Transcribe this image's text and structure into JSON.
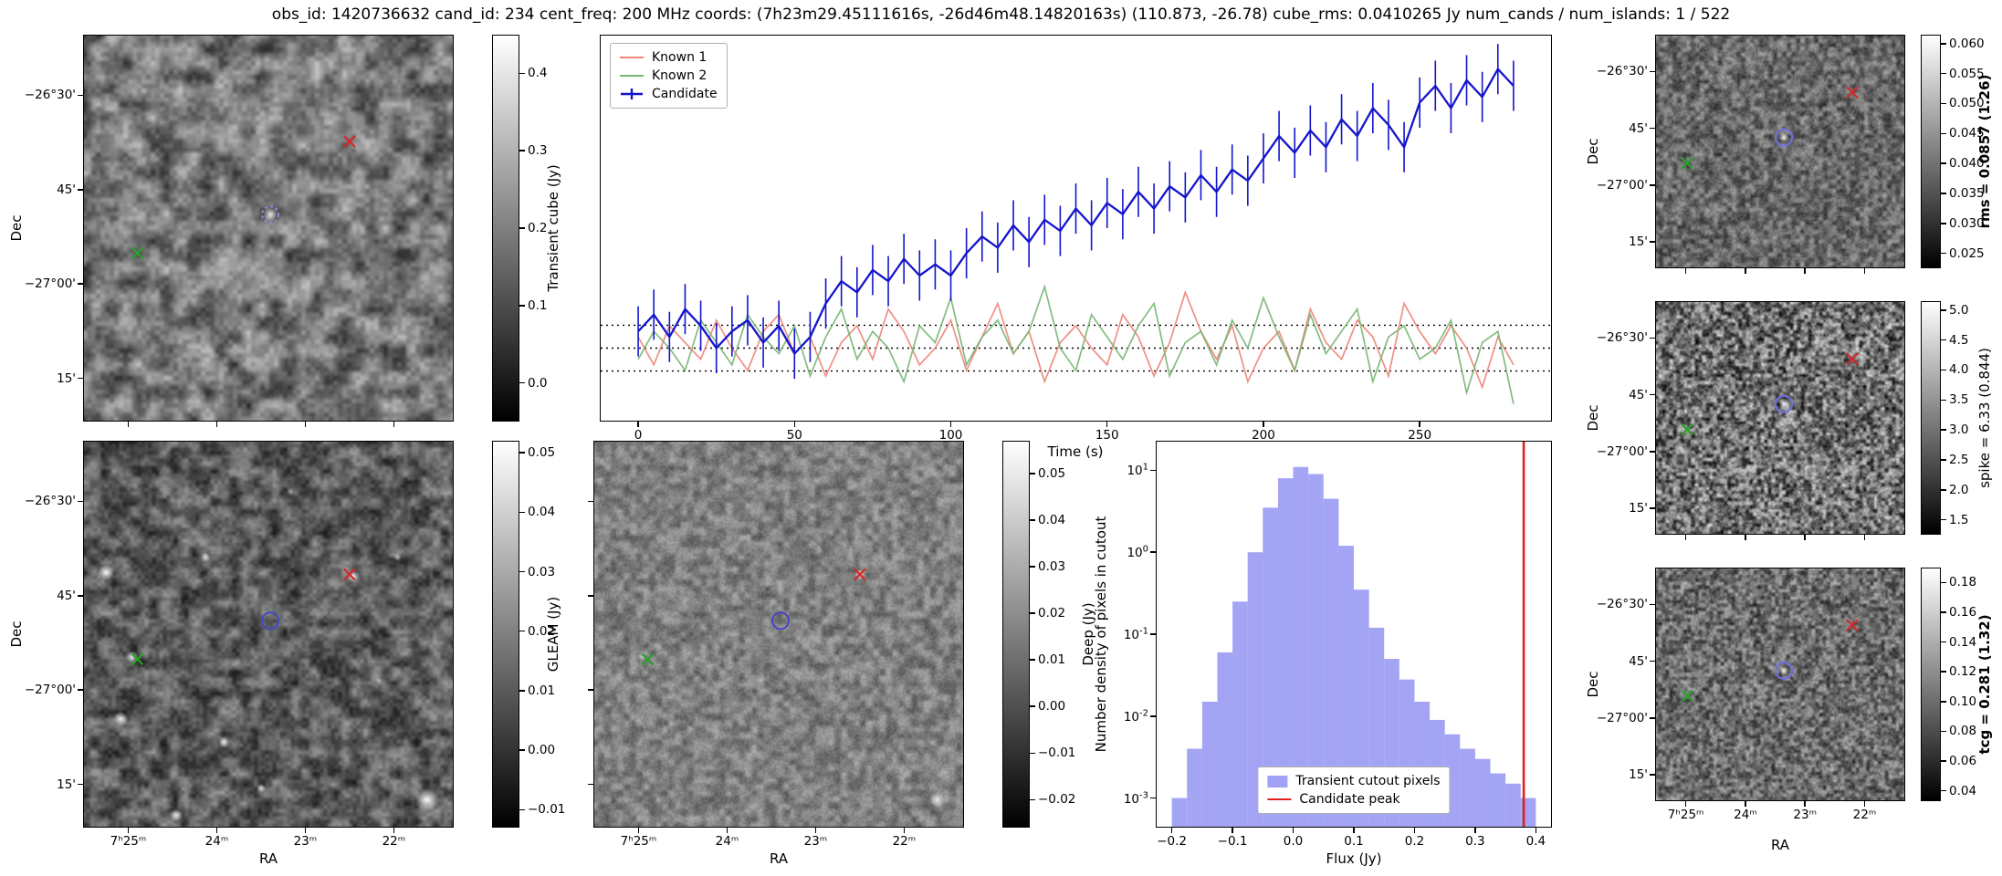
{
  "title": "obs_id: 1420736632 cand_id: 234 cent_freq: 200 MHz coords: (7h23m29.45111616s, -26d46m48.14820163s) (110.873, -26.78) cube_rms: 0.0410265 Jy num_cands / num_islands: 1 / 522",
  "axis_labels": {
    "dec": "Dec",
    "ra": "RA",
    "time": "Time (s)",
    "flux": "Flux (Jy)",
    "hist_y": "Number density of pixels in cutout"
  },
  "image_axes": {
    "dec_ticks": [
      "−26°30'",
      "45'",
      "−27°00'",
      "15'"
    ],
    "dec_fracs": [
      0.155,
      0.4,
      0.645,
      0.89
    ],
    "ra_ticks": [
      "7ʰ25ᵐ",
      "24ᵐ",
      "23ᵐ",
      "22ᵐ"
    ],
    "ra_fracs": [
      0.12,
      0.36,
      0.6,
      0.84
    ]
  },
  "panels": {
    "transient": {
      "colorbar": {
        "label": "Transient cube (Jy)",
        "ticks": [
          "0.4",
          "0.3",
          "0.2",
          "0.1",
          "0.0"
        ],
        "vmin": -0.05,
        "vmax": 0.45,
        "bold": false
      },
      "markers": [
        [
          "x",
          "#d62728",
          0.72,
          0.275
        ],
        [
          "x",
          "#2ca02c",
          0.145,
          0.565
        ],
        [
          "circle",
          "#8888e8",
          0.505,
          0.465,
          "dashed"
        ]
      ]
    },
    "gleam": {
      "colorbar": {
        "label": "GLEAM (Jy)",
        "ticks": [
          "0.05",
          "0.04",
          "0.03",
          "0.02",
          "0.01",
          "0.00",
          "−0.01"
        ],
        "vmin": -0.013,
        "vmax": 0.052,
        "bold": false
      },
      "markers": [
        [
          "x",
          "#d62728",
          0.72,
          0.345
        ],
        [
          "x",
          "#2ca02c",
          0.145,
          0.565
        ],
        [
          "circle",
          "#4646c8",
          0.505,
          0.465
        ]
      ]
    },
    "deep": {
      "colorbar": {
        "label": "Deep (Jy)",
        "ticks": [
          "0.05",
          "0.04",
          "0.03",
          "0.02",
          "0.01",
          "0.00",
          "−0.01",
          "−0.02"
        ],
        "vmin": -0.026,
        "vmax": 0.057,
        "bold": false
      },
      "markers": [
        [
          "x",
          "#d62728",
          0.72,
          0.345
        ],
        [
          "x",
          "#2ca02c",
          0.145,
          0.565
        ],
        [
          "circle",
          "#4646c8",
          0.505,
          0.465
        ]
      ]
    },
    "rms": {
      "colorbar": {
        "label": "rms = 0.0857 (1.26)",
        "ticks": [
          "0.060",
          "0.055",
          "0.050",
          "0.045",
          "0.040",
          "0.035",
          "0.030",
          "0.025"
        ],
        "vmin": 0.0225,
        "vmax": 0.0615,
        "bold": true
      },
      "markers": [
        [
          "x",
          "#d62728",
          0.79,
          0.245
        ],
        [
          "x",
          "#2ca02c",
          0.125,
          0.55
        ],
        [
          "circle",
          "#7070e0",
          0.515,
          0.44
        ]
      ]
    },
    "spike": {
      "colorbar": {
        "label": "spike = 6.33 (0.844)",
        "ticks": [
          "5.0",
          "4.5",
          "4.0",
          "3.5",
          "3.0",
          "2.5",
          "2.0",
          "1.5"
        ],
        "vmin": 1.25,
        "vmax": 5.15,
        "bold": false
      },
      "markers": [
        [
          "x",
          "#d62728",
          0.79,
          0.245
        ],
        [
          "x",
          "#2ca02c",
          0.125,
          0.55
        ],
        [
          "circle",
          "#7070e0",
          0.515,
          0.44
        ]
      ]
    },
    "tcg": {
      "colorbar": {
        "label": "tcg = 0.281 (1.32)",
        "ticks": [
          "0.18",
          "0.16",
          "0.14",
          "0.12",
          "0.10",
          "0.08",
          "0.06",
          "0.04"
        ],
        "vmin": 0.033,
        "vmax": 0.19,
        "bold": true
      },
      "markers": [
        [
          "x",
          "#d62728",
          0.79,
          0.245
        ],
        [
          "x",
          "#2ca02c",
          0.125,
          0.55
        ],
        [
          "circle",
          "#7070e0",
          0.515,
          0.44
        ]
      ]
    }
  },
  "chart_data": [
    {
      "id": "lightcurve",
      "type": "line",
      "xlabel": "Time (s)",
      "xlim": [
        -12,
        292
      ],
      "ylim": [
        -0.13,
        0.56
      ],
      "xticks": [
        0,
        50,
        100,
        150,
        200,
        250
      ],
      "threshold_lines": [
        0.041,
        0.0,
        -0.041
      ],
      "legend_position": "upper left",
      "x": [
        0,
        5,
        10,
        15,
        20,
        25,
        30,
        35,
        40,
        45,
        50,
        55,
        60,
        65,
        70,
        75,
        80,
        85,
        90,
        95,
        100,
        105,
        110,
        115,
        120,
        125,
        130,
        135,
        140,
        145,
        150,
        155,
        160,
        165,
        170,
        175,
        180,
        185,
        190,
        195,
        200,
        205,
        210,
        215,
        220,
        225,
        230,
        235,
        240,
        245,
        250,
        255,
        260,
        265,
        270,
        275,
        280
      ],
      "series": [
        {
          "name": "Known 1",
          "color": "#ec8478",
          "values": [
            0.02,
            -0.03,
            0.04,
            0.01,
            -0.02,
            0.05,
            0.0,
            -0.04,
            0.03,
            0.06,
            -0.01,
            0.02,
            -0.05,
            0.01,
            0.04,
            -0.02,
            0.07,
            0.03,
            -0.03,
            0.0,
            0.05,
            -0.04,
            0.02,
            0.08,
            -0.01,
            0.03,
            -0.06,
            0.01,
            0.04,
            0.0,
            -0.03,
            0.06,
            0.02,
            -0.05,
            0.01,
            0.1,
            0.03,
            -0.02,
            0.04,
            -0.06,
            0.0,
            0.03,
            -0.04,
            0.07,
            0.01,
            -0.02,
            0.05,
            0.02,
            -0.05,
            0.08,
            0.03,
            -0.01,
            0.04,
            0.0,
            -0.07,
            0.02,
            -0.03
          ]
        },
        {
          "name": "Known 2",
          "color": "#77b573",
          "values": [
            -0.02,
            0.03,
            0.0,
            -0.04,
            0.05,
            0.01,
            -0.03,
            0.06,
            0.02,
            -0.01,
            0.04,
            -0.05,
            0.02,
            0.07,
            -0.02,
            0.03,
            0.0,
            -0.06,
            0.04,
            0.01,
            0.09,
            -0.03,
            0.02,
            0.05,
            -0.01,
            0.03,
            0.11,
            0.0,
            -0.04,
            0.06,
            0.02,
            -0.02,
            0.04,
            0.08,
            -0.05,
            0.01,
            0.03,
            -0.03,
            0.05,
            0.0,
            0.09,
            0.02,
            -0.04,
            0.06,
            -0.01,
            0.03,
            0.07,
            -0.06,
            0.02,
            0.04,
            -0.02,
            0.0,
            0.05,
            -0.08,
            0.01,
            0.03,
            -0.1
          ]
        },
        {
          "name": "Candidate",
          "color": "#1414cc",
          "err": 0.045,
          "values": [
            0.03,
            0.06,
            0.02,
            0.07,
            0.04,
            0.0,
            0.03,
            0.05,
            0.01,
            0.04,
            -0.01,
            0.02,
            0.08,
            0.12,
            0.1,
            0.14,
            0.12,
            0.16,
            0.13,
            0.15,
            0.13,
            0.17,
            0.2,
            0.18,
            0.22,
            0.19,
            0.23,
            0.21,
            0.25,
            0.22,
            0.26,
            0.24,
            0.28,
            0.25,
            0.29,
            0.27,
            0.31,
            0.28,
            0.32,
            0.3,
            0.34,
            0.38,
            0.35,
            0.39,
            0.36,
            0.41,
            0.38,
            0.43,
            0.4,
            0.36,
            0.44,
            0.47,
            0.43,
            0.48,
            0.45,
            0.5,
            0.47
          ]
        }
      ]
    },
    {
      "id": "flux-histogram",
      "type": "histogram",
      "title": "",
      "xlabel": "Flux (Jy)",
      "ylabel": "Number density of pixels in cutout",
      "bin_start": -0.2,
      "bin_width": 0.025,
      "densities": [
        0.001,
        0.004,
        0.015,
        0.06,
        0.25,
        1.0,
        3.5,
        8.0,
        11.0,
        9.0,
        4.5,
        1.2,
        0.35,
        0.12,
        0.05,
        0.028,
        0.015,
        0.009,
        0.006,
        0.004,
        0.003,
        0.002,
        0.0015,
        0.001
      ],
      "candidate_peak": 0.38,
      "xlim": [
        -0.225,
        0.425
      ],
      "ylog_lim": [
        -3.35,
        1.35
      ],
      "xticks": [
        "−0.2",
        "−0.1",
        "0.0",
        "0.1",
        "0.2",
        "0.3",
        "0.4"
      ],
      "ytick_exponents": [
        1,
        0,
        -1,
        -2,
        -3
      ],
      "bar_color": "#8181f1",
      "line_color": "#e02020",
      "legend": [
        {
          "label": "Transient cutout pixels",
          "color": "#8181f1",
          "glyph": "box"
        },
        {
          "label": "Candidate peak",
          "color": "#e02020",
          "glyph": "line"
        }
      ],
      "legend_position": "lower center",
      "grid": false
    }
  ]
}
